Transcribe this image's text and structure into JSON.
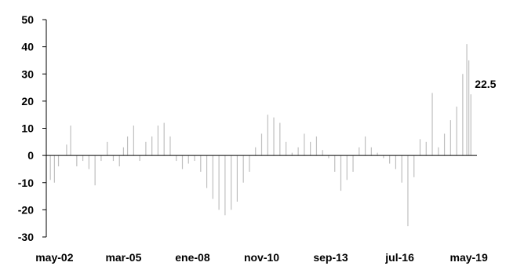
{
  "chart_data": {
    "type": "bar",
    "title": "",
    "xlabel": "",
    "ylabel": "",
    "ylim": [
      -30,
      50
    ],
    "y_ticks": [
      -30,
      -20,
      -10,
      0,
      10,
      20,
      30,
      40,
      50
    ],
    "x_tick_labels": [
      "may-02",
      "mar-05",
      "ene-08",
      "nov-10",
      "sep-13",
      "jul-16",
      "may-19"
    ],
    "x_tick_months": [
      "2002-05",
      "2005-03",
      "2008-01",
      "2010-11",
      "2013-09",
      "2016-07",
      "2019-05"
    ],
    "x_start": "2002-01",
    "x_end": "2019-09",
    "grid": false,
    "legend": "none",
    "bar_color": "#bfbfbf",
    "axis_color": "#000000",
    "annotation": {
      "month": "2019-06",
      "value": 22.5,
      "text": "22.5"
    },
    "series": [
      {
        "months": [
          "2002-03",
          "2002-05",
          "2002-07",
          "2002-11",
          "2003-01",
          "2003-04",
          "2003-07",
          "2003-10",
          "2004-01",
          "2004-04",
          "2004-07",
          "2004-10",
          "2005-01",
          "2005-03",
          "2005-05",
          "2005-08",
          "2005-11",
          "2006-02",
          "2006-05",
          "2006-08",
          "2006-11",
          "2007-02",
          "2007-05",
          "2007-08",
          "2007-11",
          "2008-02",
          "2008-05",
          "2008-08",
          "2008-11",
          "2009-02",
          "2009-05",
          "2009-08",
          "2009-11",
          "2010-02",
          "2010-05",
          "2010-08",
          "2010-11",
          "2011-02",
          "2011-05",
          "2011-08",
          "2011-11",
          "2012-02",
          "2012-05",
          "2012-08",
          "2012-11",
          "2013-02",
          "2013-05",
          "2013-08",
          "2013-11",
          "2014-02",
          "2014-05",
          "2014-08",
          "2014-11",
          "2015-02",
          "2015-05",
          "2015-08",
          "2015-11",
          "2016-02",
          "2016-05",
          "2016-08",
          "2016-11",
          "2017-02",
          "2017-05",
          "2017-08",
          "2017-11",
          "2018-02",
          "2018-05",
          "2018-08",
          "2018-11",
          "2019-02",
          "2019-04",
          "2019-05",
          "2019-06"
        ],
        "values": [
          -9,
          -10,
          -4,
          4,
          11,
          -4,
          -2,
          -5,
          -11,
          -2,
          5,
          -2,
          -4,
          3,
          7,
          11,
          -2,
          5,
          7,
          11,
          12,
          7,
          -2,
          -5,
          -3,
          -2,
          -6,
          -12,
          -16,
          -20,
          -22,
          -20,
          -17,
          -10,
          -6,
          3,
          8,
          15,
          14,
          12,
          5,
          1,
          3,
          8,
          5,
          7,
          2,
          -1,
          -6,
          -13,
          -9,
          -6,
          3,
          7,
          3,
          1,
          -1,
          -3,
          -5,
          -10,
          -26,
          -8,
          6,
          5,
          23,
          3,
          8,
          13,
          18,
          30,
          41,
          35,
          22.5
        ]
      }
    ]
  }
}
